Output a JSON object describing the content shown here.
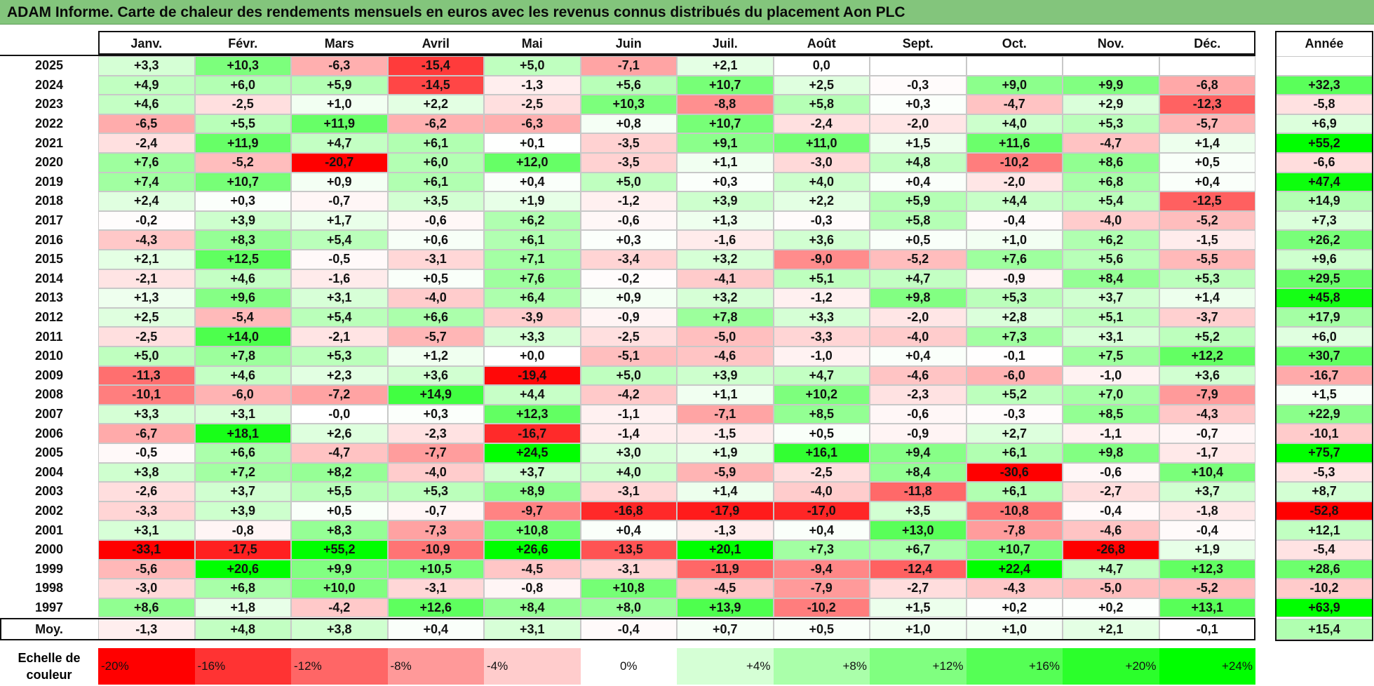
{
  "title": "ADAM Informe. Carte de chaleur des rendements mensuels en euros avec les revenus connus distribués du placement Aon PLC",
  "chart_data": {
    "type": "heatmap",
    "title": "ADAM Informe. Carte de chaleur des rendements mensuels en euros avec les revenus connus distribués du placement Aon PLC",
    "months": [
      "Janv.",
      "Févr.",
      "Mars",
      "Avril",
      "Mai",
      "Juin",
      "Juil.",
      "Août",
      "Sept.",
      "Oct.",
      "Nov.",
      "Déc."
    ],
    "year_column_label": "Année",
    "average_label": "Moy.",
    "rows": [
      {
        "year": "2025",
        "values": [
          "+3,3",
          "+10,3",
          "-6,3",
          "-15,4",
          "+5,0",
          "-7,1",
          "+2,1",
          "0,0",
          "",
          "",
          "",
          ""
        ],
        "annual": ""
      },
      {
        "year": "2024",
        "values": [
          "+4,9",
          "+6,0",
          "+5,9",
          "-14,5",
          "-1,3",
          "+5,6",
          "+10,7",
          "+2,5",
          "-0,3",
          "+9,0",
          "+9,9",
          "-6,8"
        ],
        "annual": "+32,3"
      },
      {
        "year": "2023",
        "values": [
          "+4,6",
          "-2,5",
          "+1,0",
          "+2,2",
          "-2,5",
          "+10,3",
          "-8,8",
          "+5,8",
          "+0,3",
          "-4,7",
          "+2,9",
          "-12,3"
        ],
        "annual": "-5,8"
      },
      {
        "year": "2022",
        "values": [
          "-6,5",
          "+5,5",
          "+11,9",
          "-6,2",
          "-6,3",
          "+0,8",
          "+10,7",
          "-2,4",
          "-2,0",
          "+4,0",
          "+5,3",
          "-5,7"
        ],
        "annual": "+6,9"
      },
      {
        "year": "2021",
        "values": [
          "-2,4",
          "+11,9",
          "+4,7",
          "+6,1",
          "+0,1",
          "-3,5",
          "+9,1",
          "+11,0",
          "+1,5",
          "+11,6",
          "-4,7",
          "+1,4"
        ],
        "annual": "+55,2"
      },
      {
        "year": "2020",
        "values": [
          "+7,6",
          "-5,2",
          "-20,7",
          "+6,0",
          "+12,0",
          "-3,5",
          "+1,1",
          "-3,0",
          "+4,8",
          "-10,2",
          "+8,6",
          "+0,5"
        ],
        "annual": "-6,6"
      },
      {
        "year": "2019",
        "values": [
          "+7,4",
          "+10,7",
          "+0,9",
          "+6,1",
          "+0,4",
          "+5,0",
          "+0,3",
          "+4,0",
          "+0,4",
          "-2,0",
          "+6,8",
          "+0,4"
        ],
        "annual": "+47,4"
      },
      {
        "year": "2018",
        "values": [
          "+2,4",
          "+0,3",
          "-0,7",
          "+3,5",
          "+1,9",
          "-1,2",
          "+3,9",
          "+2,2",
          "+5,9",
          "+4,4",
          "+5,4",
          "-12,5"
        ],
        "annual": "+14,9"
      },
      {
        "year": "2017",
        "values": [
          "-0,2",
          "+3,9",
          "+1,7",
          "-0,6",
          "+6,2",
          "-0,6",
          "+1,3",
          "-0,3",
          "+5,8",
          "-0,4",
          "-4,0",
          "-5,2"
        ],
        "annual": "+7,3"
      },
      {
        "year": "2016",
        "values": [
          "-4,3",
          "+8,3",
          "+5,4",
          "+0,6",
          "+6,1",
          "+0,3",
          "-1,6",
          "+3,6",
          "+0,5",
          "+1,0",
          "+6,2",
          "-1,5"
        ],
        "annual": "+26,2"
      },
      {
        "year": "2015",
        "values": [
          "+2,1",
          "+12,5",
          "-0,5",
          "-3,1",
          "+7,1",
          "-3,4",
          "+3,2",
          "-9,0",
          "-5,2",
          "+7,6",
          "+5,6",
          "-5,5"
        ],
        "annual": "+9,6"
      },
      {
        "year": "2014",
        "values": [
          "-2,1",
          "+4,6",
          "-1,6",
          "+0,5",
          "+7,6",
          "-0,2",
          "-4,1",
          "+5,1",
          "+4,7",
          "-0,9",
          "+8,4",
          "+5,3"
        ],
        "annual": "+29,5"
      },
      {
        "year": "2013",
        "values": [
          "+1,3",
          "+9,6",
          "+3,1",
          "-4,0",
          "+6,4",
          "+0,9",
          "+3,2",
          "-1,2",
          "+9,8",
          "+5,3",
          "+3,7",
          "+1,4"
        ],
        "annual": "+45,8"
      },
      {
        "year": "2012",
        "values": [
          "+2,5",
          "-5,4",
          "+5,4",
          "+6,6",
          "-3,9",
          "-0,9",
          "+7,8",
          "+3,3",
          "-2,0",
          "+2,8",
          "+5,1",
          "-3,7"
        ],
        "annual": "+17,9"
      },
      {
        "year": "2011",
        "values": [
          "-2,5",
          "+14,0",
          "-2,1",
          "-5,7",
          "+3,3",
          "-2,5",
          "-5,0",
          "-3,3",
          "-4,0",
          "+7,3",
          "+3,1",
          "+5,2"
        ],
        "annual": "+6,0"
      },
      {
        "year": "2010",
        "values": [
          "+5,0",
          "+7,8",
          "+5,3",
          "+1,2",
          "+0,0",
          "-5,1",
          "-4,6",
          "-1,0",
          "+0,4",
          "-0,1",
          "+7,5",
          "+12,2"
        ],
        "annual": "+30,7"
      },
      {
        "year": "2009",
        "values": [
          "-11,3",
          "+4,6",
          "+2,3",
          "+3,6",
          "-19,4",
          "+5,0",
          "+3,9",
          "+4,7",
          "-4,6",
          "-6,0",
          "-1,0",
          "+3,6"
        ],
        "annual": "-16,7"
      },
      {
        "year": "2008",
        "values": [
          "-10,1",
          "-6,0",
          "-7,2",
          "+14,9",
          "+4,4",
          "-4,2",
          "+1,1",
          "+10,2",
          "-2,3",
          "+5,2",
          "+7,0",
          "-7,9"
        ],
        "annual": "+1,5"
      },
      {
        "year": "2007",
        "values": [
          "+3,3",
          "+3,1",
          "-0,0",
          "+0,3",
          "+12,3",
          "-1,1",
          "-7,1",
          "+8,5",
          "-0,6",
          "-0,3",
          "+8,5",
          "-4,3"
        ],
        "annual": "+22,9"
      },
      {
        "year": "2006",
        "values": [
          "-6,7",
          "+18,1",
          "+2,6",
          "-2,3",
          "-16,7",
          "-1,4",
          "-1,5",
          "+0,5",
          "-0,9",
          "+2,7",
          "-1,1",
          "-0,7"
        ],
        "annual": "-10,1"
      },
      {
        "year": "2005",
        "values": [
          "-0,5",
          "+6,6",
          "-4,7",
          "-7,7",
          "+24,5",
          "+3,0",
          "+1,9",
          "+16,1",
          "+9,4",
          "+6,1",
          "+9,8",
          "-1,7"
        ],
        "annual": "+75,7"
      },
      {
        "year": "2004",
        "values": [
          "+3,8",
          "+7,2",
          "+8,2",
          "-4,0",
          "+3,7",
          "+4,0",
          "-5,9",
          "-2,5",
          "+8,4",
          "-30,6",
          "-0,6",
          "+10,4"
        ],
        "annual": "-5,3"
      },
      {
        "year": "2003",
        "values": [
          "-2,6",
          "+3,7",
          "+5,5",
          "+5,3",
          "+8,9",
          "-3,1",
          "+1,4",
          "-4,0",
          "-11,8",
          "+6,1",
          "-2,7",
          "+3,7"
        ],
        "annual": "+8,7"
      },
      {
        "year": "2002",
        "values": [
          "-3,3",
          "+3,9",
          "+0,5",
          "-0,7",
          "-9,7",
          "-16,8",
          "-17,9",
          "-17,0",
          "+3,5",
          "-10,8",
          "-0,4",
          "-1,8"
        ],
        "annual": "-52,8"
      },
      {
        "year": "2001",
        "values": [
          "+3,1",
          "-0,8",
          "+8,3",
          "-7,3",
          "+10,8",
          "+0,4",
          "-1,3",
          "+0,4",
          "+13,0",
          "-7,8",
          "-4,6",
          "-0,4"
        ],
        "annual": "+12,1"
      },
      {
        "year": "2000",
        "values": [
          "-33,1",
          "-17,5",
          "+55,2",
          "-10,9",
          "+26,6",
          "-13,5",
          "+20,1",
          "+7,3",
          "+6,7",
          "+10,7",
          "-26,8",
          "+1,9"
        ],
        "annual": "-5,4"
      },
      {
        "year": "1999",
        "values": [
          "-5,6",
          "+20,6",
          "+9,9",
          "+10,5",
          "-4,5",
          "-3,1",
          "-11,9",
          "-9,4",
          "-12,4",
          "+22,4",
          "+4,7",
          "+12,3"
        ],
        "annual": "+28,6"
      },
      {
        "year": "1998",
        "values": [
          "-3,0",
          "+6,8",
          "+10,0",
          "-3,1",
          "-0,8",
          "+10,8",
          "-4,5",
          "-7,9",
          "-2,7",
          "-4,3",
          "-5,0",
          "-5,2"
        ],
        "annual": "-10,2"
      },
      {
        "year": "1997",
        "values": [
          "+8,6",
          "+1,8",
          "-4,2",
          "+12,6",
          "+8,4",
          "+8,0",
          "+13,9",
          "-10,2",
          "+1,5",
          "+0,2",
          "+0,2",
          "+13,1"
        ],
        "annual": "+63,9"
      }
    ],
    "average": {
      "values": [
        "-1,3",
        "+4,8",
        "+3,8",
        "+0,4",
        "+3,1",
        "-0,4",
        "+0,7",
        "+0,5",
        "+1,0",
        "+1,0",
        "+2,1",
        "-0,1"
      ],
      "annual": "+15,4"
    },
    "color_scale": {
      "label": "Echelle de couleur",
      "stops": [
        "-20%",
        "-16%",
        "-12%",
        "-8%",
        "-4%",
        "0%",
        "+4%",
        "+8%",
        "+12%",
        "+16%",
        "+20%",
        "+24%"
      ],
      "negative_color": "#ff0000",
      "neutral_color": "#ffffff",
      "positive_color": "#00ff00"
    }
  }
}
